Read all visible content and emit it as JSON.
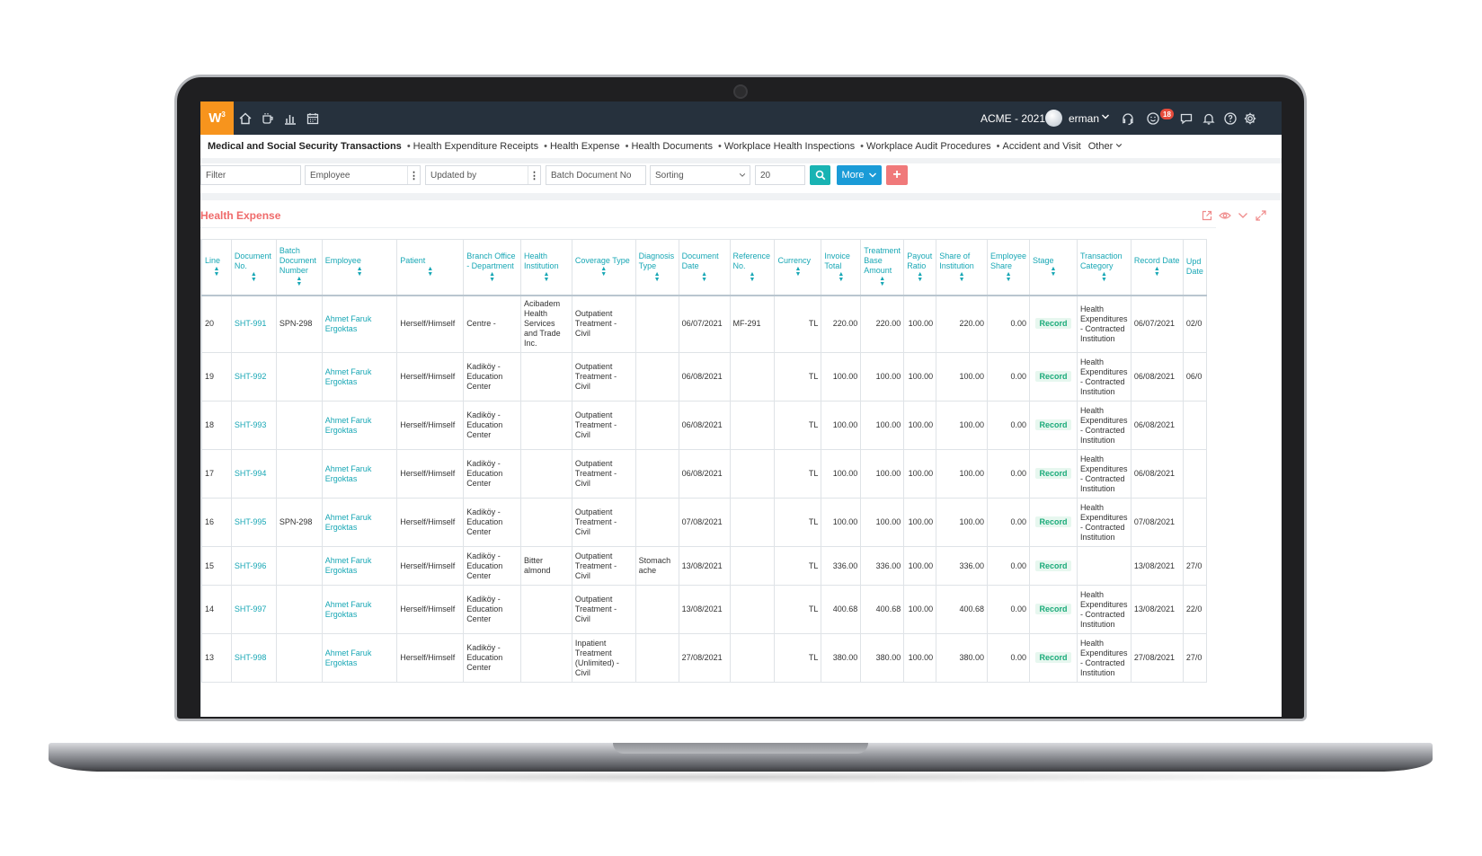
{
  "app": {
    "logo": "W",
    "logo_sup": "3",
    "company": "ACME - 2021",
    "user": "erman",
    "notifications_count": "18"
  },
  "breadcrumb": {
    "main": "Medical and Social Security Transactions",
    "items": [
      "Health Expenditure Receipts",
      "Health Expense",
      "Health Documents",
      "Workplace Health Inspections",
      "Workplace Audit Procedures",
      "Accident and Visit"
    ],
    "other": "Other"
  },
  "filters": {
    "filter_placeholder": "Filter",
    "employee_placeholder": "Employee",
    "updated_by_placeholder": "Updated by",
    "batch_doc_placeholder": "Batch Document No",
    "sorting": "Sorting",
    "page_size": "20",
    "more_label": "More",
    "add_label": "+"
  },
  "panel": {
    "title": "Health Expense"
  },
  "table": {
    "columns": [
      "Line",
      "Document No.",
      "Batch Document Number",
      "Employee",
      "Patient",
      "Branch Office - Department",
      "Health Institution",
      "Coverage Type",
      "Diagnosis Type",
      "Document Date",
      "Reference No.",
      "Currency",
      "Invoice Total",
      "Treatment Base Amount",
      "Payout Ratio",
      "Share of Institution",
      "Employee Share",
      "Stage",
      "Transaction Category",
      "Record Date",
      "Upd Date"
    ],
    "rows": [
      {
        "line": "20",
        "doc": "SHT-991",
        "batch": "SPN-298",
        "employee": "Ahmet Faruk Ergoktas",
        "patient": "Herself/Himself",
        "branch": "Centre -",
        "institution": "Acibadem Health Services and Trade Inc.",
        "coverage": "Outpatient Treatment - Civil",
        "diagnosis": "",
        "date": "06/07/2021",
        "ref": "MF-291",
        "currency": "TL",
        "invoice": "220.00",
        "base": "220.00",
        "ratio": "100.00",
        "inst_share": "220.00",
        "emp_share": "0.00",
        "stage": "Record",
        "category": "Health Expenditures - Contracted Institution",
        "record_date": "06/07/2021",
        "upd": "02/0"
      },
      {
        "line": "19",
        "doc": "SHT-992",
        "batch": "",
        "employee": "Ahmet Faruk Ergoktas",
        "patient": "Herself/Himself",
        "branch": "Kadiköy - Education Center",
        "institution": "",
        "coverage": "Outpatient Treatment - Civil",
        "diagnosis": "",
        "date": "06/08/2021",
        "ref": "",
        "currency": "TL",
        "invoice": "100.00",
        "base": "100.00",
        "ratio": "100.00",
        "inst_share": "100.00",
        "emp_share": "0.00",
        "stage": "Record",
        "category": "Health Expenditures - Contracted Institution",
        "record_date": "06/08/2021",
        "upd": "06/0"
      },
      {
        "line": "18",
        "doc": "SHT-993",
        "batch": "",
        "employee": "Ahmet Faruk Ergoktas",
        "patient": "Herself/Himself",
        "branch": "Kadiköy - Education Center",
        "institution": "",
        "coverage": "Outpatient Treatment - Civil",
        "diagnosis": "",
        "date": "06/08/2021",
        "ref": "",
        "currency": "TL",
        "invoice": "100.00",
        "base": "100.00",
        "ratio": "100.00",
        "inst_share": "100.00",
        "emp_share": "0.00",
        "stage": "Record",
        "category": "Health Expenditures - Contracted Institution",
        "record_date": "06/08/2021",
        "upd": ""
      },
      {
        "line": "17",
        "doc": "SHT-994",
        "batch": "",
        "employee": "Ahmet Faruk Ergoktas",
        "patient": "Herself/Himself",
        "branch": "Kadiköy - Education Center",
        "institution": "",
        "coverage": "Outpatient Treatment - Civil",
        "diagnosis": "",
        "date": "06/08/2021",
        "ref": "",
        "currency": "TL",
        "invoice": "100.00",
        "base": "100.00",
        "ratio": "100.00",
        "inst_share": "100.00",
        "emp_share": "0.00",
        "stage": "Record",
        "category": "Health Expenditures - Contracted Institution",
        "record_date": "06/08/2021",
        "upd": ""
      },
      {
        "line": "16",
        "doc": "SHT-995",
        "batch": "SPN-298",
        "employee": "Ahmet Faruk Ergoktas",
        "patient": "Herself/Himself",
        "branch": "Kadiköy - Education Center",
        "institution": "",
        "coverage": "Outpatient Treatment - Civil",
        "diagnosis": "",
        "date": "07/08/2021",
        "ref": "",
        "currency": "TL",
        "invoice": "100.00",
        "base": "100.00",
        "ratio": "100.00",
        "inst_share": "100.00",
        "emp_share": "0.00",
        "stage": "Record",
        "category": "Health Expenditures - Contracted Institution",
        "record_date": "07/08/2021",
        "upd": ""
      },
      {
        "line": "15",
        "doc": "SHT-996",
        "batch": "",
        "employee": "Ahmet Faruk Ergoktas",
        "patient": "Herself/Himself",
        "branch": "Kadiköy - Education Center",
        "institution": "Bitter almond",
        "coverage": "Outpatient Treatment - Civil",
        "diagnosis": "Stomach ache",
        "date": "13/08/2021",
        "ref": "",
        "currency": "TL",
        "invoice": "336.00",
        "base": "336.00",
        "ratio": "100.00",
        "inst_share": "336.00",
        "emp_share": "0.00",
        "stage": "Record",
        "category": "",
        "record_date": "13/08/2021",
        "upd": "27/0"
      },
      {
        "line": "14",
        "doc": "SHT-997",
        "batch": "",
        "employee": "Ahmet Faruk Ergoktas",
        "patient": "Herself/Himself",
        "branch": "Kadiköy - Education Center",
        "institution": "",
        "coverage": "Outpatient Treatment - Civil",
        "diagnosis": "",
        "date": "13/08/2021",
        "ref": "",
        "currency": "TL",
        "invoice": "400.68",
        "base": "400.68",
        "ratio": "100.00",
        "inst_share": "400.68",
        "emp_share": "0.00",
        "stage": "Record",
        "category": "Health Expenditures - Contracted Institution",
        "record_date": "13/08/2021",
        "upd": "22/0"
      },
      {
        "line": "13",
        "doc": "SHT-998",
        "batch": "",
        "employee": "Ahmet Faruk Ergoktas",
        "patient": "Herself/Himself",
        "branch": "Kadiköy - Education Center",
        "institution": "",
        "coverage": "Inpatient Treatment (Unlimited) - Civil",
        "diagnosis": "",
        "date": "27/08/2021",
        "ref": "",
        "currency": "TL",
        "invoice": "380.00",
        "base": "380.00",
        "ratio": "100.00",
        "inst_share": "380.00",
        "emp_share": "0.00",
        "stage": "Record",
        "category": "Health Expenditures - Contracted Institution",
        "record_date": "27/08/2021",
        "upd": "27/0"
      }
    ]
  },
  "colors": {
    "topbar": "#26313d",
    "logo": "#f7941d",
    "accent_teal": "#18a7b5",
    "search_button": "#19b3b3",
    "more_button": "#1a9bd7",
    "add_button": "#f0797a",
    "panel_title": "#ef6b6b",
    "record_badge": "#1bab7a",
    "notification_badge": "#e74c3c"
  },
  "icons": [
    "home-icon",
    "coffee-icon",
    "bar-chart-icon",
    "calendar-icon",
    "headset-icon",
    "emoji-icon",
    "chat-icon",
    "bell-icon",
    "help-icon",
    "gear-icon",
    "search-icon",
    "export-icon",
    "eye-icon",
    "chevron-down-icon",
    "expand-icon"
  ]
}
